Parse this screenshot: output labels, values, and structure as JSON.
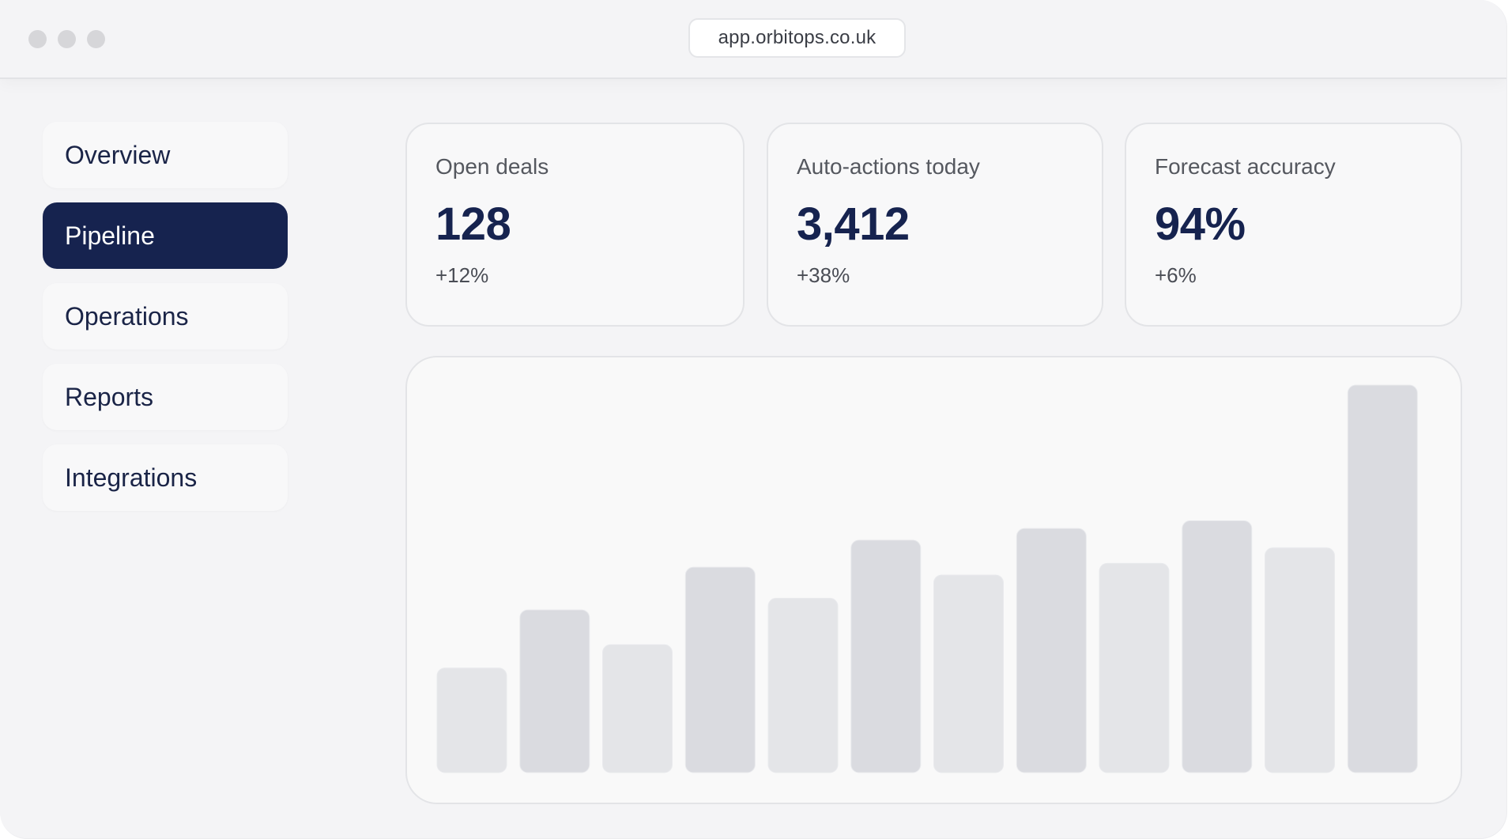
{
  "browser": {
    "url": "app.orbitops.co.uk"
  },
  "sidebar": {
    "items": [
      {
        "label": "Overview",
        "active": false
      },
      {
        "label": "Pipeline",
        "active": true
      },
      {
        "label": "Operations",
        "active": false
      },
      {
        "label": "Reports",
        "active": false
      },
      {
        "label": "Integrations",
        "active": false
      }
    ]
  },
  "metrics": [
    {
      "label": "Open deals",
      "value": "128",
      "delta": "+12%"
    },
    {
      "label": "Auto-actions today",
      "value": "3,412",
      "delta": "+38%"
    },
    {
      "label": "Forecast accuracy",
      "value": "94%",
      "delta": "+6%"
    }
  ],
  "colors": {
    "accent": "#16234f",
    "bar_dark": "#dadbe0",
    "bar_light": "#e4e5e8"
  },
  "chart_data": {
    "type": "bar",
    "title": "",
    "xlabel": "",
    "ylabel": "",
    "grid": false,
    "values": [
      27,
      42,
      33,
      53,
      45,
      60,
      51,
      63,
      54,
      65,
      58,
      100
    ]
  }
}
